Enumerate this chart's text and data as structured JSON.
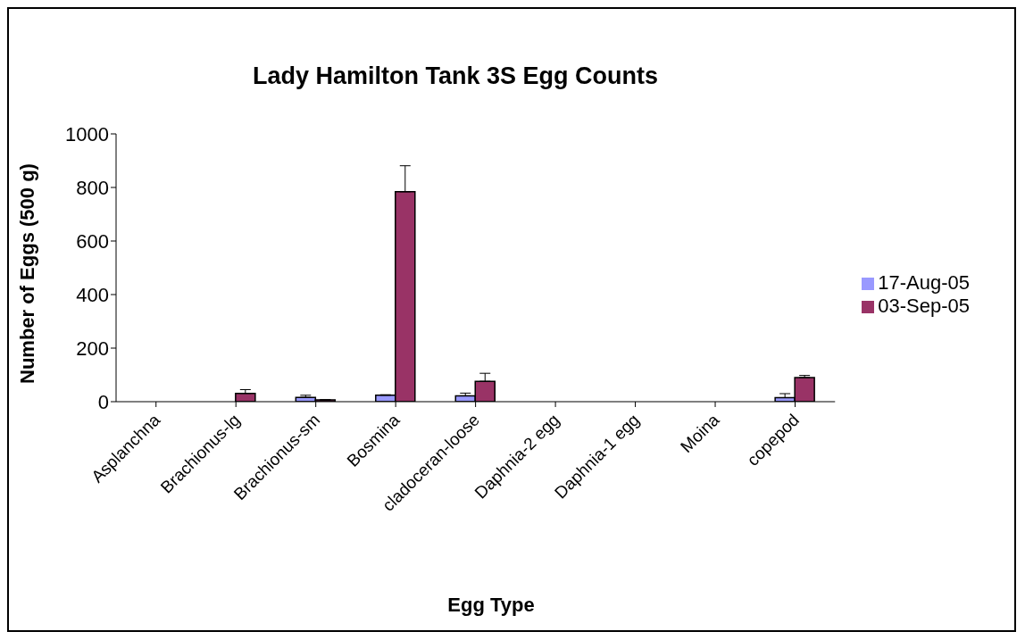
{
  "chart_data": {
    "type": "bar",
    "title": "Lady Hamilton Tank 3S Egg Counts",
    "xlabel": "Egg Type",
    "ylabel": "Number of Eggs (500 g)",
    "categories": [
      "Asplanchna",
      "Brachionus-lg",
      "Brachionus-sm",
      "Bosmina",
      "cladoceran-loose",
      "Daphnia-2 egg",
      "Daphnia-1 egg",
      "Moina",
      "copepod"
    ],
    "series": [
      {
        "name": "17-Aug-05",
        "color": "#9999ff",
        "values": [
          0,
          0,
          16,
          24,
          22,
          0,
          0,
          0,
          15
        ],
        "errors": [
          null,
          null,
          [
            16,
            24
          ],
          [
            24,
            26
          ],
          [
            22,
            32
          ],
          null,
          null,
          null,
          [
            15,
            30
          ]
        ]
      },
      {
        "name": "03-Sep-05",
        "color": "#993366",
        "values": [
          0,
          31,
          7,
          784,
          76,
          0,
          0,
          0,
          90
        ],
        "errors": [
          null,
          [
            31,
            45
          ],
          null,
          [
            784,
            881
          ],
          [
            76,
            106
          ],
          null,
          null,
          null,
          [
            90,
            98
          ]
        ]
      }
    ],
    "ylim": [
      0,
      1000
    ],
    "yticks": [
      0,
      200,
      400,
      600,
      800,
      1000
    ],
    "legend": "right"
  }
}
